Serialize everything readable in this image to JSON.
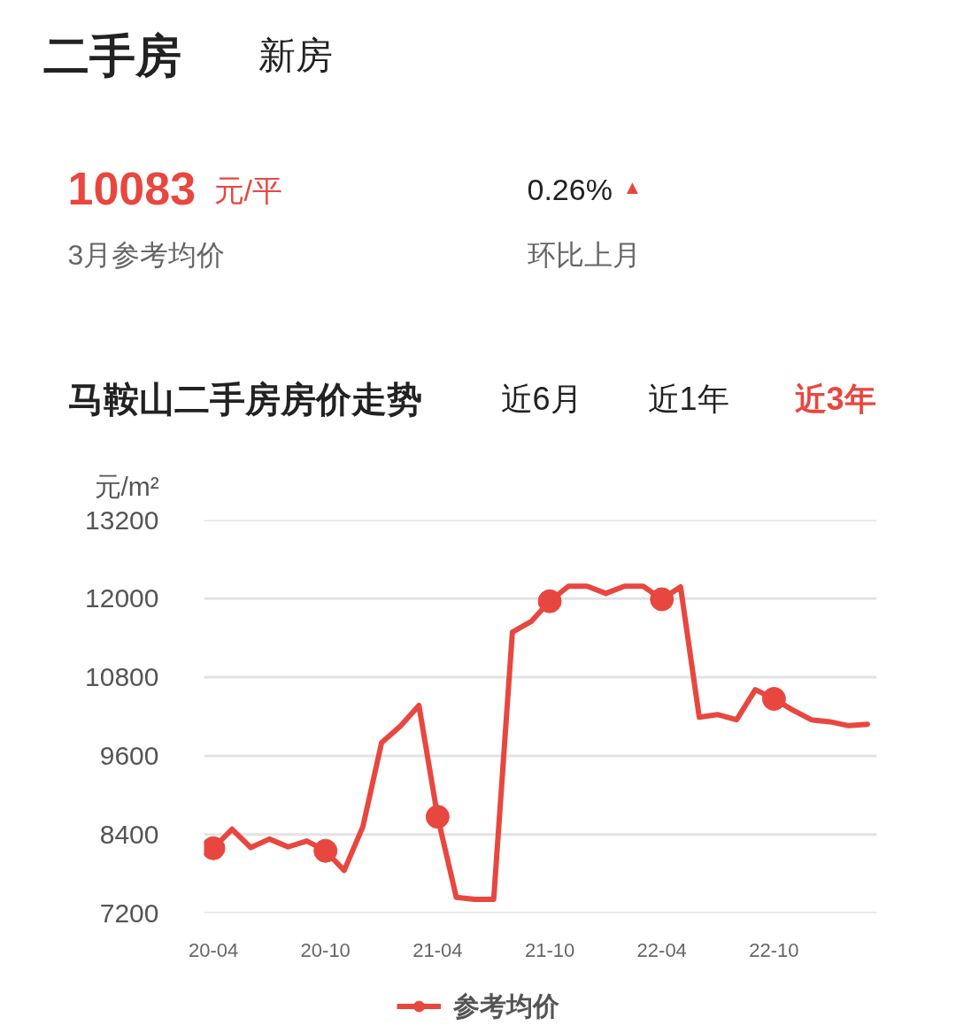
{
  "chart_data": {
    "type": "line",
    "title": "马鞍山二手房房价走势",
    "ylabel": "元/m²",
    "annotations": [
      "二手房",
      "新房",
      "10083",
      "元/平",
      "0.26%",
      "▲",
      "3月参考均价",
      "环比上月",
      "近6月",
      "近1年",
      "近3年"
    ],
    "categories": [
      "20-04",
      null,
      null,
      null,
      null,
      null,
      "20-10",
      null,
      null,
      null,
      null,
      null,
      "21-04",
      null,
      null,
      null,
      null,
      null,
      "21-10",
      null,
      null,
      null,
      null,
      null,
      "22-04",
      null,
      null,
      null,
      null,
      null,
      "22-10",
      null,
      null,
      null,
      null,
      null
    ],
    "series": [
      {
        "name": "参考均价",
        "color": "#e8473f",
        "values": [
          8190,
          8480,
          8200,
          8330,
          8210,
          8300,
          8150,
          7850,
          8520,
          9800,
          10050,
          10370,
          8670,
          7440,
          7410,
          7410,
          11490,
          11650,
          11960,
          12190,
          12190,
          12080,
          12190,
          12190,
          11990,
          12180,
          10190,
          10230,
          10150,
          10610,
          10470,
          10300,
          10150,
          10120,
          10060,
          10083
        ]
      },
      {
        "type": "scatter",
        "color": "#e8473f",
        "marker": "circle",
        "x": [
          "20-04",
          "20-10",
          "21-04",
          "21-10",
          "22-04",
          "22-10"
        ],
        "values": [
          8190,
          8150,
          8670,
          11960,
          11990,
          10470
        ]
      }
    ],
    "ylim": [
      7200,
      13200
    ],
    "yticks": [
      7200,
      8400,
      9600,
      10800,
      12000,
      13200
    ],
    "grid": "y",
    "legend": "bottom"
  }
}
